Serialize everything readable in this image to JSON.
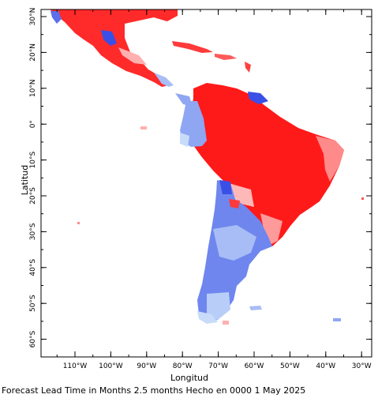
{
  "map": {
    "x_axis_title": "Longitud",
    "y_axis_title": "Latitud",
    "lon_ticks": [
      {
        "value": -110,
        "label": "110°W"
      },
      {
        "value": -100,
        "label": "100°W"
      },
      {
        "value": -90,
        "label": "90°W"
      },
      {
        "value": -80,
        "label": "80°W"
      },
      {
        "value": -70,
        "label": "70°W"
      },
      {
        "value": -60,
        "label": "60°W"
      },
      {
        "value": -50,
        "label": "50°W"
      },
      {
        "value": -40,
        "label": "40°W"
      },
      {
        "value": -30,
        "label": "30°W"
      }
    ],
    "lat_ticks": [
      {
        "value": 30,
        "label": "30°N"
      },
      {
        "value": 20,
        "label": "20°N"
      },
      {
        "value": 10,
        "label": "10°N"
      },
      {
        "value": 0,
        "label": "0°"
      },
      {
        "value": -10,
        "label": "10°S"
      },
      {
        "value": -20,
        "label": "20°S"
      },
      {
        "value": -30,
        "label": "30°S"
      },
      {
        "value": -40,
        "label": "40°S"
      },
      {
        "value": -50,
        "label": "50°S"
      },
      {
        "value": -60,
        "label": "60°S"
      }
    ],
    "colors": {
      "warm_strong": "#ff1a1a",
      "warm_medium": "#ff5a5a",
      "warm_light": "#ffb0b0",
      "cool_strong": "#3a4fe6",
      "cool_medium": "#6f86ee",
      "cool_light": "#a8bdf6",
      "cool_pale": "#c8dcfa"
    }
  },
  "footer": {
    "text": "Forecast Lead Time in Months 2.5 months Hecho en 0000 1 May 2025"
  }
}
